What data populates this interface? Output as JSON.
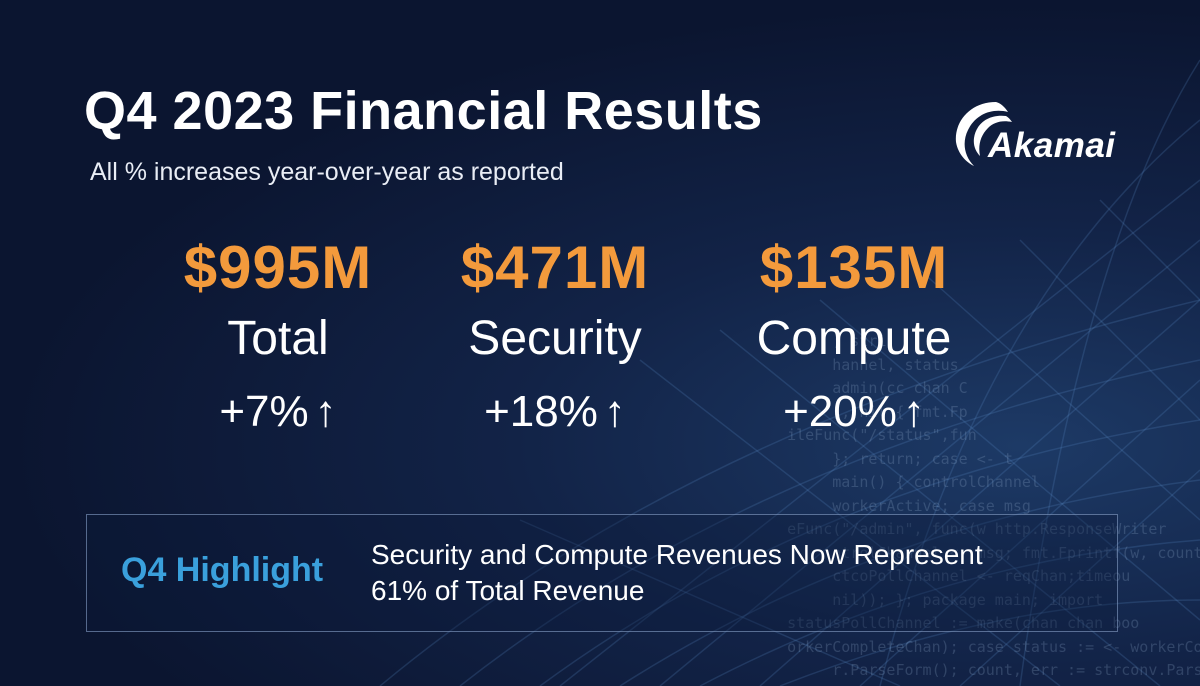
{
  "header": {
    "title": "Q4 2023 Financial Results",
    "subtitle": "All % increases year-over-year as reported"
  },
  "logo": {
    "text": "Akamai",
    "icon": "akamai-swoosh-icon"
  },
  "metrics": [
    {
      "value": "$995M",
      "label": "Total",
      "change": "+7%",
      "arrow": "↑"
    },
    {
      "value": "$471M",
      "label": "Security",
      "change": "+18%",
      "arrow": "↑"
    },
    {
      "value": "$135M",
      "label": "Compute",
      "change": "+20%",
      "arrow": "↑"
    }
  ],
  "highlight": {
    "label": "Q4 Highlight",
    "line1": "Security and Compute Revenues Now Represent",
    "line2": "61% of Total Revenue"
  },
  "colors": {
    "background": "#0b1530",
    "accent_orange": "#f39a3c",
    "highlight_blue": "#3aa0dc",
    "text": "#ffffff"
  }
}
